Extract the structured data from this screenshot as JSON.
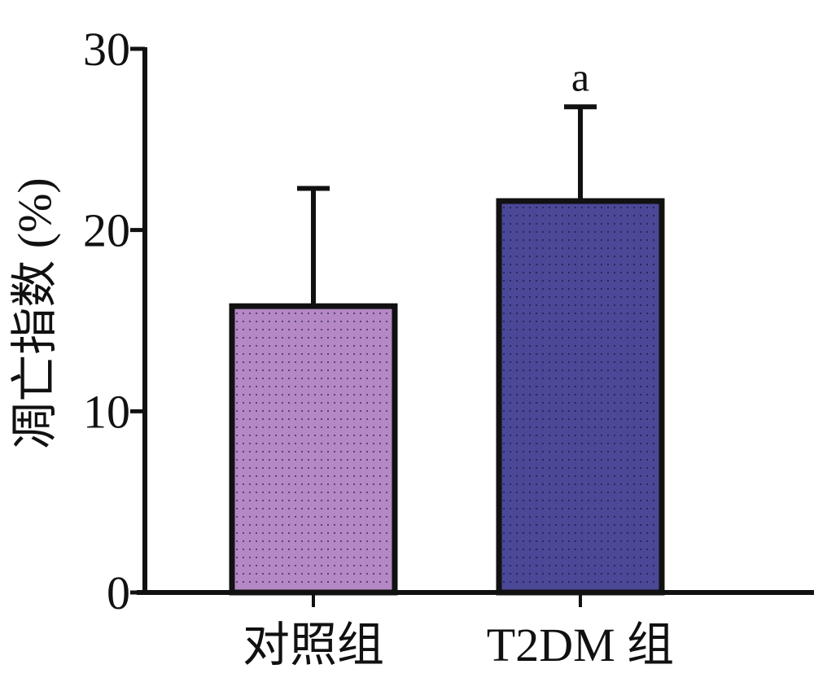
{
  "chart_data": {
    "type": "bar",
    "title": "",
    "xlabel": "",
    "ylabel": "凋亡指数 (%)",
    "ylim": [
      0,
      30
    ],
    "yticks": [
      0,
      10,
      20,
      30
    ],
    "grid": false,
    "categories": [
      "对照组",
      "T2DM 组"
    ],
    "values": [
      15.8,
      21.6
    ],
    "error_upper": [
      22.3,
      26.8
    ],
    "bar_colors": [
      "#b488c4",
      "#4b4898"
    ],
    "annotations": [
      {
        "category": "T2DM 组",
        "text": "a"
      }
    ]
  }
}
